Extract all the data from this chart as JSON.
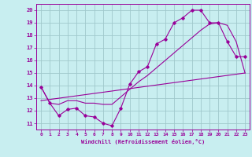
{
  "xlabel": "Windchill (Refroidissement éolien,°C)",
  "background_color": "#c8eef0",
  "grid_color": "#a0c8cc",
  "line_color": "#990099",
  "xlim": [
    -0.5,
    23.5
  ],
  "ylim": [
    10.5,
    20.5
  ],
  "yticks": [
    11,
    12,
    13,
    14,
    15,
    16,
    17,
    18,
    19,
    20
  ],
  "xticks": [
    0,
    1,
    2,
    3,
    4,
    5,
    6,
    7,
    8,
    9,
    10,
    11,
    12,
    13,
    14,
    15,
    16,
    17,
    18,
    19,
    20,
    21,
    22,
    23
  ],
  "series1_x": [
    0,
    1,
    2,
    3,
    4,
    5,
    6,
    7,
    8,
    9,
    10,
    11,
    12,
    13,
    14,
    15,
    16,
    17,
    18,
    19,
    20,
    21,
    22,
    23
  ],
  "series1_y": [
    13.9,
    12.6,
    11.6,
    12.1,
    12.2,
    11.6,
    11.5,
    11.0,
    10.8,
    12.2,
    14.1,
    15.1,
    15.5,
    17.3,
    17.7,
    19.0,
    19.4,
    20.0,
    20.0,
    19.0,
    19.0,
    17.5,
    16.3,
    16.3
  ],
  "series2_x": [
    0,
    23
  ],
  "series2_y": [
    12.8,
    15.0
  ],
  "series3_x": [
    0,
    1,
    2,
    3,
    4,
    5,
    6,
    7,
    8,
    9,
    10,
    11,
    12,
    13,
    14,
    15,
    16,
    17,
    18,
    19,
    20,
    21,
    22,
    23
  ],
  "series3_y": [
    13.9,
    12.6,
    12.5,
    12.8,
    12.8,
    12.6,
    12.6,
    12.5,
    12.5,
    13.1,
    13.7,
    14.3,
    14.8,
    15.4,
    16.0,
    16.6,
    17.2,
    17.8,
    18.4,
    18.9,
    19.0,
    18.8,
    17.5,
    15.0
  ]
}
